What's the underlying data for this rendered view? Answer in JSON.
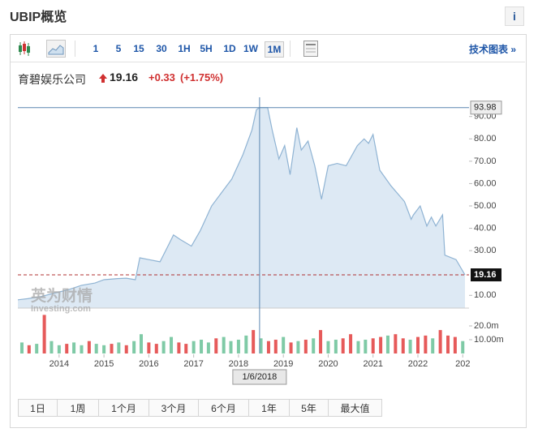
{
  "header": {
    "title": "UBIP概览",
    "info_button": "i"
  },
  "toolbar": {
    "intervals": [
      "1",
      "5",
      "15",
      "30",
      "1H",
      "5H",
      "1D",
      "1W",
      "1M"
    ],
    "selected": "1M",
    "advanced_link": "技术图表 »"
  },
  "quote": {
    "name": "育碧娱乐公司",
    "price": 19.16,
    "change": "+0.33",
    "change_pct": "(+1.75%)"
  },
  "watermark": {
    "brand": "英为财情",
    "site": "Investing.com"
  },
  "chart_data": {
    "type": "area",
    "x": [
      2013.08,
      2013.3,
      2013.6,
      2013.9,
      2014.2,
      2014.5,
      2014.8,
      2015.0,
      2015.3,
      2015.5,
      2015.7,
      2015.8,
      2016.0,
      2016.25,
      2016.45,
      2016.55,
      2016.7,
      2016.95,
      2017.15,
      2017.4,
      2017.7,
      2017.85,
      2018.1,
      2018.3,
      2018.4,
      2018.47,
      2018.65,
      2018.75,
      2018.9,
      2019.03,
      2019.15,
      2019.3,
      2019.4,
      2019.55,
      2019.7,
      2019.85,
      2020.0,
      2020.2,
      2020.4,
      2020.65,
      2020.8,
      2020.9,
      2021.0,
      2021.15,
      2021.4,
      2021.7,
      2021.85,
      2021.9,
      2022.05,
      2022.2,
      2022.3,
      2022.4,
      2022.55,
      2022.6,
      2022.85,
      2023.05
    ],
    "values": [
      8,
      8.5,
      9.5,
      11,
      12.5,
      14.5,
      15.5,
      17,
      17.5,
      17.7,
      17,
      26.8,
      26,
      25,
      33,
      37,
      35,
      32,
      39,
      50,
      58,
      62,
      73,
      84,
      93,
      94,
      94,
      84,
      71,
      77,
      64,
      85,
      75,
      79,
      68,
      53,
      68,
      69,
      68,
      77,
      80,
      78,
      82,
      66,
      59,
      52,
      44,
      46,
      50,
      41,
      45,
      41,
      46,
      28,
      26,
      19.16
    ],
    "line_color": "#8fb3d3",
    "fill_color": "#dde9f4",
    "xlim": [
      2013.08,
      2023.14
    ],
    "xticks": [
      2014,
      2015,
      2016,
      2017,
      2018,
      2019,
      2020,
      2021,
      2022,
      {
        "value": 2023,
        "label": "202"
      }
    ],
    "ylim": [
      4.3,
      98.6
    ],
    "yticks": [
      {
        "value": 10,
        "label": "10.00"
      },
      {
        "value": 30,
        "label": "30.00"
      },
      {
        "value": 40,
        "label": "40.00"
      },
      {
        "value": 50,
        "label": "50.00"
      },
      {
        "value": 60,
        "label": "60.00"
      },
      {
        "value": 70,
        "label": "70.00"
      },
      {
        "value": 80,
        "label": "80.00"
      },
      {
        "value": 90,
        "label": "90.00"
      }
    ],
    "last_price": {
      "value": 19.16,
      "label": "19.16",
      "color": "#b03030"
    },
    "crosshair": {
      "x": 2018.47,
      "x_label": "1/6/2018",
      "y": 93.98,
      "y_label": "93.98",
      "color": "#5b86b0"
    },
    "volume": {
      "ylim": [
        0,
        30
      ],
      "yticks": [
        {
          "value": 20,
          "label": "20.0m"
        },
        {
          "value": 10,
          "label": "10.00m"
        }
      ],
      "x": [
        2013.17,
        2013.33,
        2013.5,
        2013.67,
        2013.83,
        2014.0,
        2014.17,
        2014.33,
        2014.5,
        2014.67,
        2014.83,
        2015.0,
        2015.17,
        2015.33,
        2015.5,
        2015.67,
        2015.83,
        2016.0,
        2016.17,
        2016.33,
        2016.5,
        2016.67,
        2016.83,
        2017.0,
        2017.17,
        2017.33,
        2017.5,
        2017.67,
        2017.83,
        2018.0,
        2018.17,
        2018.33,
        2018.5,
        2018.67,
        2018.83,
        2019.0,
        2019.17,
        2019.33,
        2019.5,
        2019.67,
        2019.83,
        2020.0,
        2020.17,
        2020.33,
        2020.5,
        2020.67,
        2020.83,
        2021.0,
        2021.17,
        2021.33,
        2021.5,
        2021.67,
        2021.83,
        2022.0,
        2022.17,
        2022.33,
        2022.5,
        2022.67,
        2022.83,
        2023.0
      ],
      "values": [
        8,
        6,
        7,
        28,
        9,
        6,
        7,
        8,
        6,
        9,
        7,
        6,
        7,
        8,
        6,
        9,
        14,
        8,
        7,
        9,
        12,
        8,
        7,
        9,
        10,
        8,
        11,
        12,
        9,
        10,
        13,
        17,
        11,
        9,
        10,
        12,
        8,
        9,
        10,
        11,
        17,
        9,
        10,
        11,
        14,
        9,
        10,
        11,
        12,
        13,
        14,
        11,
        10,
        12,
        13,
        11,
        17,
        13,
        12,
        9
      ],
      "colors": [
        "#7fcaa6",
        "#e65a5a",
        "#7fcaa6",
        "#e65a5a",
        "#7fcaa6",
        "#7fcaa6",
        "#e65a5a",
        "#7fcaa6",
        "#7fcaa6",
        "#e65a5a",
        "#7fcaa6",
        "#7fcaa6",
        "#e65a5a",
        "#7fcaa6",
        "#e65a5a",
        "#7fcaa6",
        "#7fcaa6",
        "#e65a5a",
        "#e65a5a",
        "#7fcaa6",
        "#7fcaa6",
        "#e65a5a",
        "#e65a5a",
        "#7fcaa6",
        "#7fcaa6",
        "#7fcaa6",
        "#e65a5a",
        "#7fcaa6",
        "#7fcaa6",
        "#7fcaa6",
        "#7fcaa6",
        "#e65a5a",
        "#7fcaa6",
        "#e65a5a",
        "#e65a5a",
        "#7fcaa6",
        "#e65a5a",
        "#7fcaa6",
        "#e65a5a",
        "#7fcaa6",
        "#e65a5a",
        "#7fcaa6",
        "#7fcaa6",
        "#e65a5a",
        "#e65a5a",
        "#7fcaa6",
        "#7fcaa6",
        "#e65a5a",
        "#e65a5a",
        "#7fcaa6",
        "#e65a5a",
        "#e65a5a",
        "#7fcaa6",
        "#e65a5a",
        "#e65a5a",
        "#7fcaa6",
        "#e65a5a",
        "#e65a5a",
        "#e65a5a",
        "#7fcaa6"
      ]
    }
  },
  "ranges": [
    "1日",
    "1周",
    "1个月",
    "3个月",
    "6个月",
    "1年",
    "5年",
    "最大值"
  ]
}
